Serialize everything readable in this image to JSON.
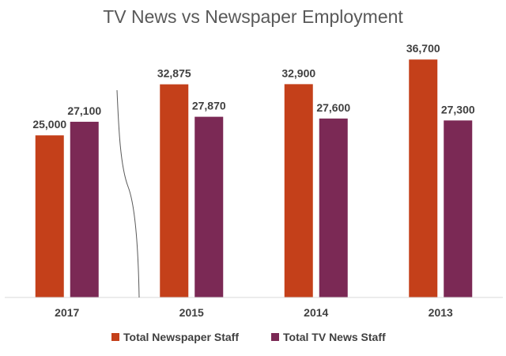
{
  "chart_data": {
    "type": "bar",
    "title": "TV News vs Newspaper Employment",
    "categories": [
      "2017",
      "2015",
      "2014",
      "2013"
    ],
    "series": [
      {
        "name": "Total Newspaper Staff",
        "color": "#c4401a",
        "values": [
          25000,
          32875,
          32900,
          36700
        ],
        "labels": [
          "25,000",
          "32,875",
          "32,900",
          "36,700"
        ]
      },
      {
        "name": "Total TV News Staff",
        "color": "#7b2955",
        "values": [
          27100,
          27870,
          27600,
          27300
        ],
        "labels": [
          "27,100",
          "27,870",
          "27,600",
          "27,300"
        ]
      }
    ],
    "ylim": [
      0,
      41000
    ],
    "grid": false,
    "legend_position": "bottom",
    "axis_break": "between 2017 and 2015"
  }
}
